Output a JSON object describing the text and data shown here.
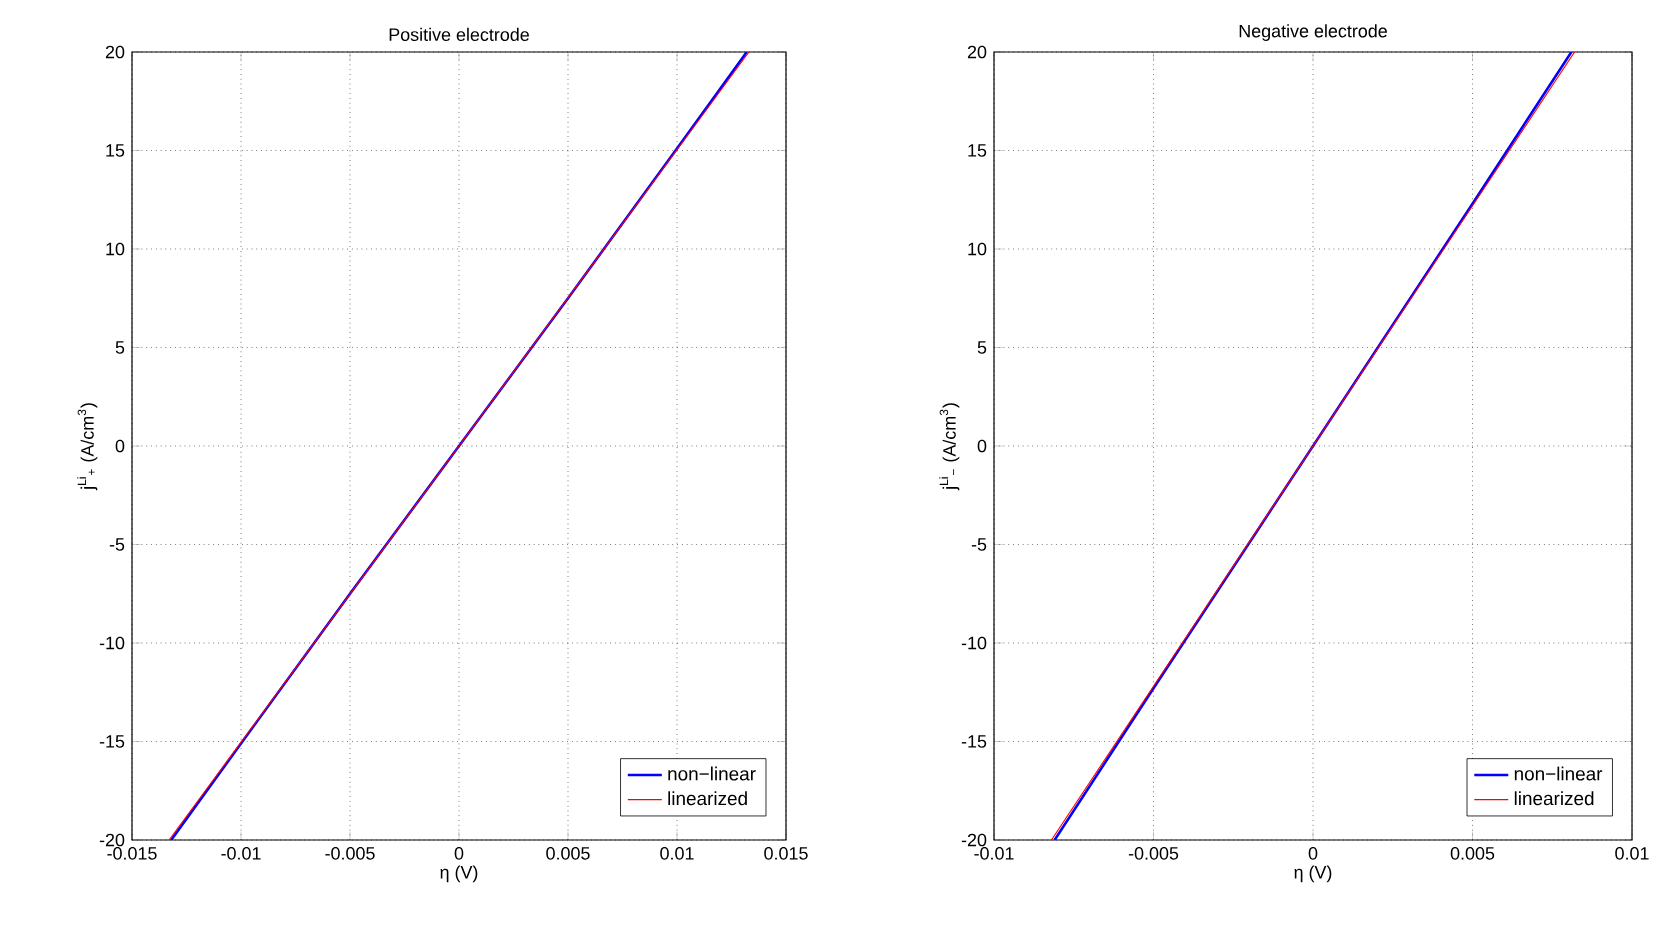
{
  "chart_data": [
    {
      "type": "line",
      "title": "Positive electrode",
      "xlabel": "η (V)",
      "ylabel": "j$^{Li}$$_{+}$ (A/cm$^{3}$)",
      "xlim": [
        -0.015,
        0.015
      ],
      "ylim": [
        -20,
        20
      ],
      "xticks": [
        -0.015,
        -0.01,
        -0.005,
        0,
        0.005,
        0.01,
        0.015
      ],
      "yticks": [
        -20,
        -15,
        -10,
        -5,
        0,
        5,
        10,
        15,
        20
      ],
      "grid": true,
      "legend": "bottom right",
      "series": [
        {
          "name": "non−linear",
          "color": "#0000ff",
          "x": [
            -0.0132,
            -0.01,
            -0.005,
            0,
            0.005,
            0.01,
            0.0132
          ],
          "values": [
            -20,
            -15.1,
            -7.5,
            0,
            7.5,
            15.1,
            20
          ]
        },
        {
          "name": "linearized",
          "color": "#ff0000",
          "x": [
            -0.0133,
            0,
            0.0133
          ],
          "values": [
            -20,
            0,
            20
          ]
        }
      ]
    },
    {
      "type": "line",
      "title": "Negative electrode",
      "xlabel": "η (V)",
      "ylabel": "j$^{Li}$$_{−}$ (A/cm$^{3}$)",
      "xlim": [
        -0.01,
        0.01
      ],
      "ylim": [
        -20,
        20
      ],
      "xticks": [
        -0.01,
        -0.005,
        0,
        0.005,
        0.01
      ],
      "yticks": [
        -20,
        -15,
        -10,
        -5,
        0,
        5,
        10,
        15,
        20
      ],
      "grid": true,
      "legend": "bottom right",
      "series": [
        {
          "name": "non−linear",
          "color": "#0000ff",
          "x": [
            -0.0081,
            -0.005,
            0,
            0.005,
            0.0081
          ],
          "values": [
            -20,
            -12.3,
            0,
            12.3,
            20
          ]
        },
        {
          "name": "linearized",
          "color": "#ff0000",
          "x": [
            -0.0082,
            0,
            0.0082
          ],
          "values": [
            -20,
            0,
            20
          ]
        }
      ]
    }
  ]
}
